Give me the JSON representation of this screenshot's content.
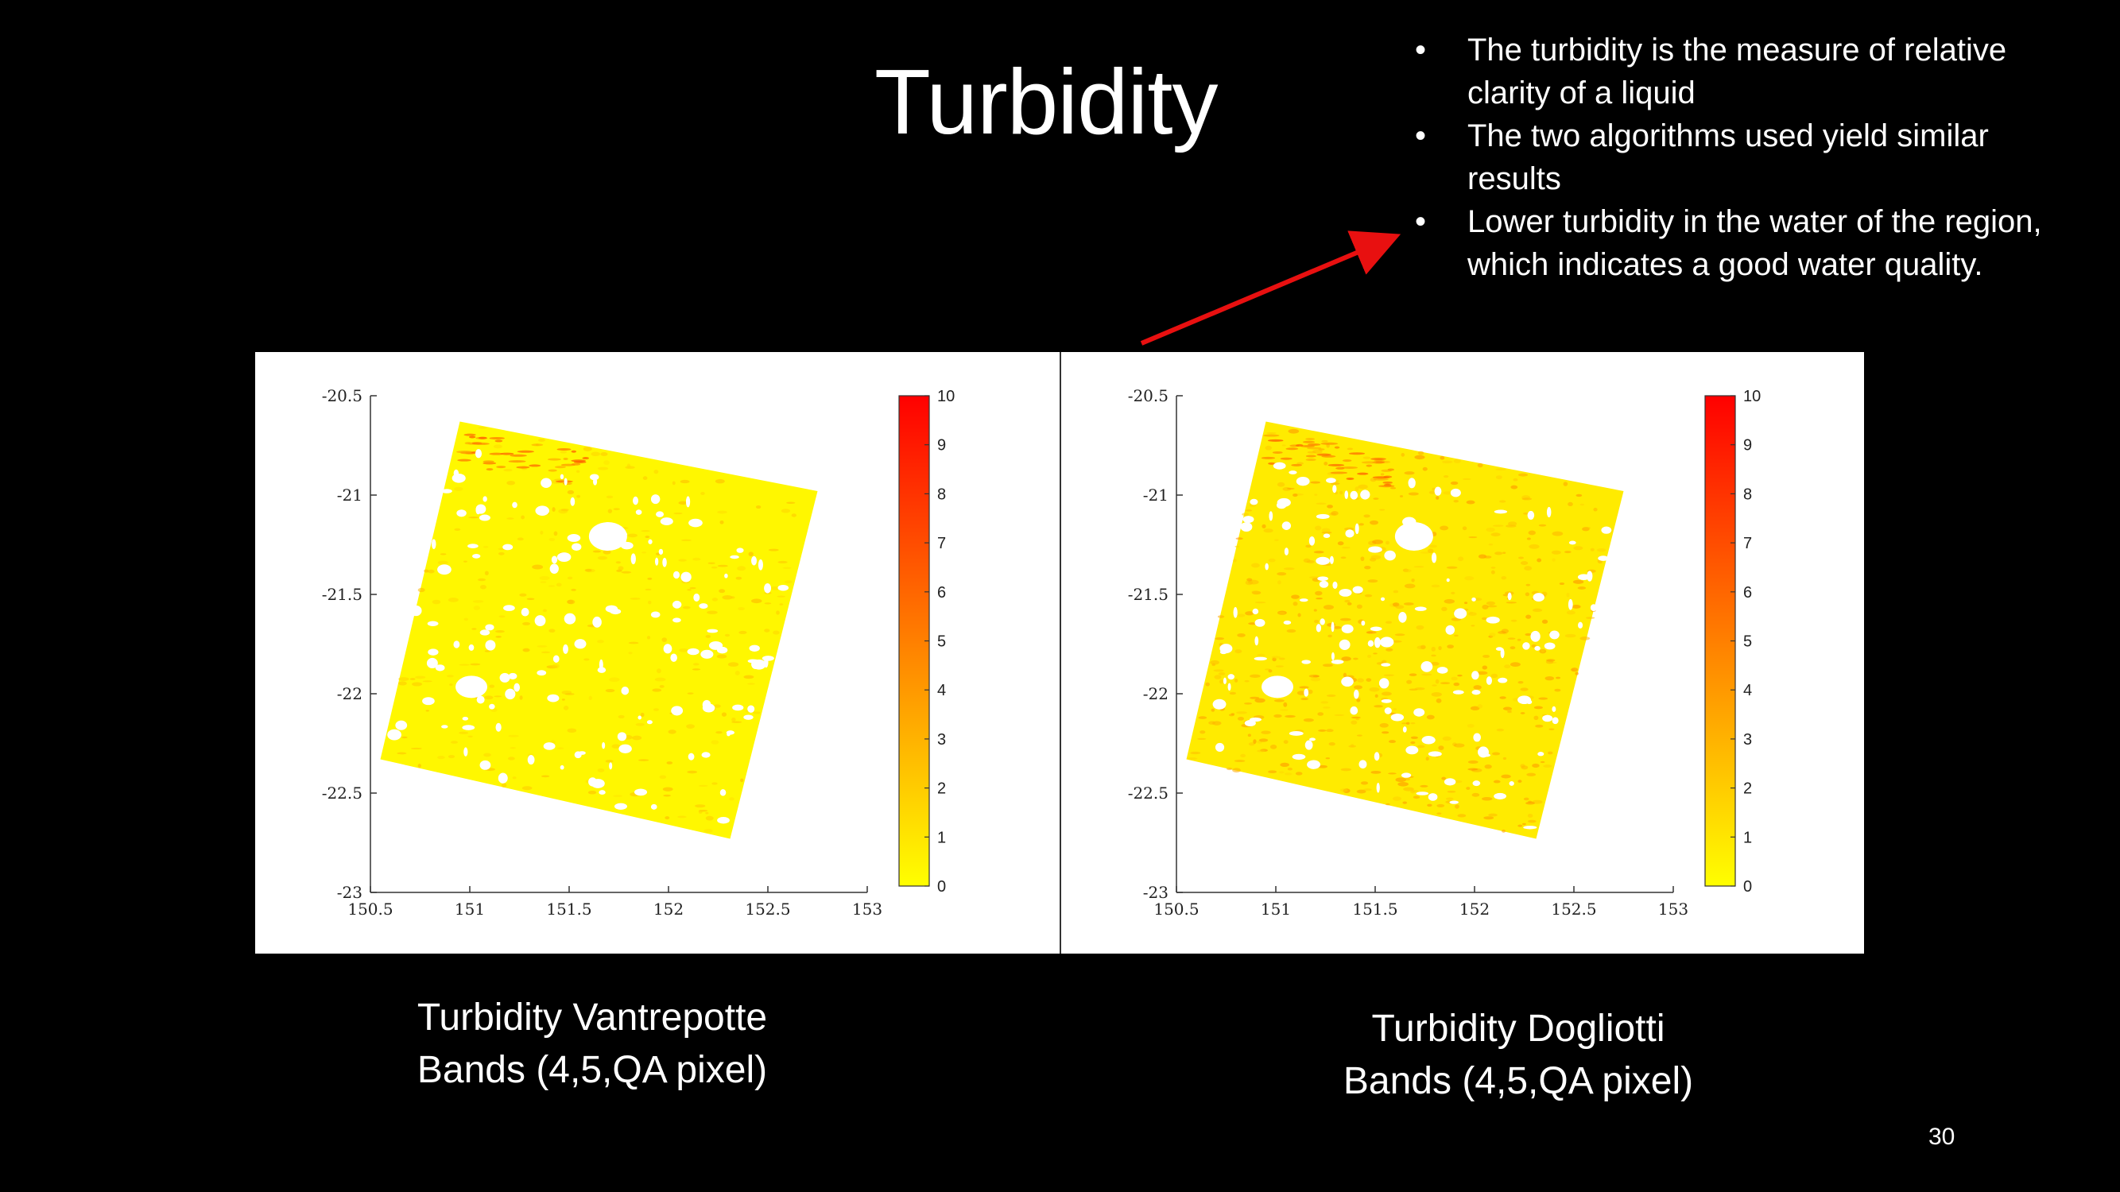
{
  "slide": {
    "title": "Turbidity",
    "bullets": [
      "The turbidity is the measure of relative clarity of a liquid",
      " The two algorithms used  yield similar results",
      " Lower  turbidity in the water of the region, which indicates a good water quality."
    ],
    "captions": [
      [
        "Turbidity Vantrepotte",
        "Bands (4,5,QA pixel)"
      ],
      [
        "Turbidity Dogliotti",
        "Bands (4,5,QA pixel)"
      ]
    ],
    "page_number": "30",
    "colors": {
      "background": "#000000",
      "text": "#ffffff",
      "arrow": "#e81010"
    }
  },
  "chart_data": [
    {
      "type": "heatmap",
      "title": "",
      "xlabel": "",
      "ylabel": "",
      "xlim": [
        150.5,
        153
      ],
      "ylim": [
        -23,
        -20.5
      ],
      "x_ticks": [
        150.5,
        151,
        151.5,
        152,
        152.5,
        153
      ],
      "y_ticks": [
        -20.5,
        -21,
        -21.5,
        -22,
        -22.5,
        -23
      ],
      "colorbar": {
        "min": 0,
        "max": 10,
        "ticks": [
          0,
          1,
          2,
          3,
          4,
          5,
          6,
          7,
          8,
          9,
          10
        ],
        "colormap": "autumn-reversed",
        "colors": [
          "#ffff00",
          "#ff0000"
        ]
      },
      "scene_corners": [
        [
          150.95,
          -20.63
        ],
        [
          152.75,
          -20.98
        ],
        [
          152.31,
          -22.73
        ],
        [
          150.55,
          -22.33
        ]
      ],
      "typical_value": 0.3
    },
    {
      "type": "heatmap",
      "title": "",
      "xlabel": "",
      "ylabel": "",
      "xlim": [
        150.5,
        153
      ],
      "ylim": [
        -23,
        -20.5
      ],
      "x_ticks": [
        150.5,
        151,
        151.5,
        152,
        152.5,
        153
      ],
      "y_ticks": [
        -20.5,
        -21,
        -21.5,
        -22,
        -22.5,
        -23
      ],
      "colorbar": {
        "min": 0,
        "max": 10,
        "ticks": [
          0,
          1,
          2,
          3,
          4,
          5,
          6,
          7,
          8,
          9,
          10
        ],
        "colormap": "autumn-reversed",
        "colors": [
          "#ffff00",
          "#ff0000"
        ]
      },
      "scene_corners": [
        [
          150.95,
          -20.63
        ],
        [
          152.75,
          -20.98
        ],
        [
          152.31,
          -22.73
        ],
        [
          150.55,
          -22.33
        ]
      ],
      "typical_value": 0.8
    }
  ]
}
